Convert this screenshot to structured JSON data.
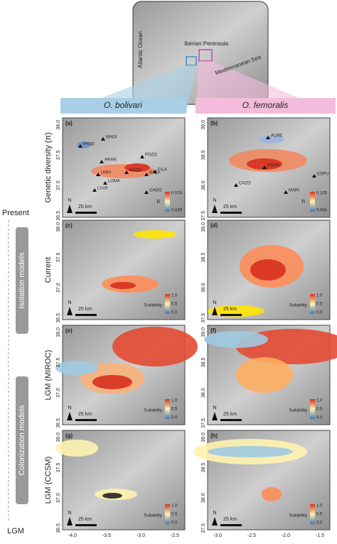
{
  "inset": {
    "labels": [
      "Atlantic Ocean",
      "Iberian Peninsula",
      "Mediterranean Sea"
    ]
  },
  "columns": [
    "O. bolivari",
    "O. femoralis"
  ],
  "rows": [
    "Genetic diversity (π)",
    "Current",
    "LGM (MIROC)",
    "LGM (CCSM)"
  ],
  "timeline": {
    "top": "Present",
    "bottom": "LGM",
    "groups": [
      "Isolation models",
      "Colonization models"
    ]
  },
  "north": "N",
  "scale_bar": "25 km",
  "suitability_legend": {
    "title": "Suitability",
    "labels": [
      "1.0",
      "0.5",
      "0.0"
    ]
  },
  "xticks": [
    [
      "-4.0",
      "-3.5",
      "-3.0",
      "-2.5"
    ],
    [
      "-3.0",
      "-2.5",
      "-2.0",
      "-1.5"
    ]
  ],
  "yticks": [
    [
      "36.5",
      "37.0",
      "37.5",
      "38.0"
    ],
    [
      "37.5",
      "38.0",
      "38.5",
      "39.0"
    ]
  ],
  "panels": [
    {
      "tag": "(a)",
      "sites": [
        "PAND",
        "MAGI",
        "ARAN",
        "POZO",
        "UNIV",
        "RAGU",
        "BAZA",
        "FILA",
        "LOMA",
        "LUJA",
        "GADO"
      ],
      "legend": {
        "title": "π",
        "max": "0.074",
        "min": "0.049"
      }
    },
    {
      "tag": "(b)",
      "sites": [
        "ALME",
        "POYO",
        "CAZO",
        "ESPU",
        "MARI"
      ],
      "legend": {
        "title": "π",
        "max": "0.105",
        "min": "0.064"
      }
    },
    {
      "tag": "(c)"
    },
    {
      "tag": "(d)"
    },
    {
      "tag": "(e)"
    },
    {
      "tag": "(f)"
    },
    {
      "tag": "(g)"
    },
    {
      "tag": "(h)"
    }
  ]
}
